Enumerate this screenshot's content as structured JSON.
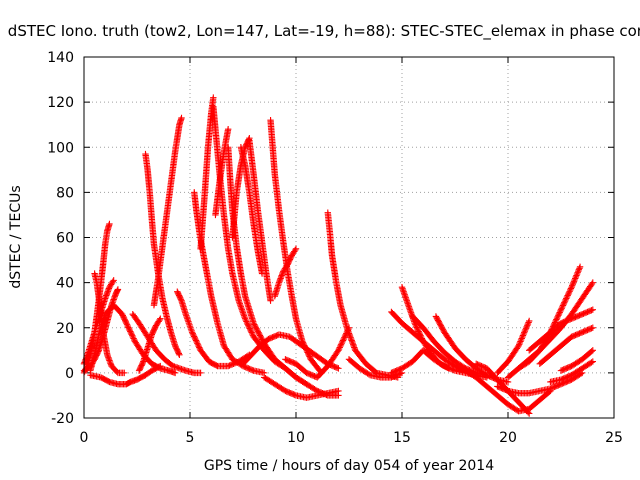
{
  "chart_data": {
    "type": "scatter",
    "title": "dSTEC Iono. truth (tow2, Lon=147, Lat=-19, h=88): STEC-STEC_elemax in phase cont",
    "xlabel": "GPS time / hours of day 054 of year 2014",
    "ylabel": "dSTEC  / TECUs",
    "xlim": [
      0,
      25
    ],
    "ylim": [
      -20,
      140
    ],
    "xticks": [
      "0",
      "5",
      "10",
      "15",
      "20",
      "25"
    ],
    "yticks": [
      "-20",
      "0",
      "20",
      "40",
      "60",
      "80",
      "100",
      "120",
      "140"
    ],
    "grid": true,
    "marker": "+",
    "color": "#ff0000",
    "series": [
      {
        "x": [
          0.0,
          0.15,
          0.3,
          0.45,
          0.6,
          0.75,
          0.9,
          1.0,
          1.1,
          1.2
        ],
        "y": [
          0,
          3,
          8,
          15,
          25,
          36,
          48,
          57,
          63,
          66
        ]
      },
      {
        "x": [
          0.0,
          0.3,
          0.5,
          0.7,
          0.9,
          1.1,
          1.3,
          1.5,
          1.6
        ],
        "y": [
          1,
          3,
          6,
          10,
          16,
          23,
          30,
          35,
          37
        ]
      },
      {
        "x": [
          0.5,
          0.6,
          0.75,
          0.9,
          1.1,
          1.3,
          1.6,
          1.9
        ],
        "y": [
          44,
          40,
          30,
          18,
          8,
          3,
          0,
          0
        ]
      },
      {
        "x": [
          0.0,
          0.2,
          0.4,
          0.6,
          0.8,
          1.0,
          1.2,
          1.4
        ],
        "y": [
          4,
          9,
          15,
          21,
          27,
          33,
          38,
          41
        ]
      },
      {
        "x": [
          0.3,
          0.5,
          0.7,
          1.0,
          1.4,
          1.8,
          2.0,
          2.4,
          2.8,
          3.2,
          3.6,
          4.0,
          4.3
        ],
        "y": [
          1,
          8,
          17,
          26,
          30,
          26,
          22,
          14,
          8,
          4,
          2,
          1,
          0
        ]
      },
      {
        "x": [
          0.3,
          0.8,
          1.2,
          1.6,
          2.0,
          2.2,
          2.5,
          2.9,
          3.2,
          3.6
        ],
        "y": [
          -1,
          -2,
          -4,
          -5,
          -5,
          -4,
          -3,
          -1,
          1,
          3
        ]
      },
      {
        "x": [
          2.3,
          2.6,
          3.0,
          3.4,
          3.8,
          4.2,
          4.8,
          5.2,
          5.5
        ],
        "y": [
          26,
          22,
          16,
          10,
          6,
          3,
          1,
          0,
          0
        ]
      },
      {
        "x": [
          2.9,
          3.0,
          3.1,
          3.2,
          3.3,
          3.5,
          3.7,
          3.9,
          4.1,
          4.3,
          4.5
        ],
        "y": [
          97,
          90,
          80,
          68,
          57,
          44,
          33,
          25,
          18,
          12,
          8
        ]
      },
      {
        "x": [
          2.6,
          2.8,
          3.0,
          3.2,
          3.4,
          3.6
        ],
        "y": [
          1,
          5,
          11,
          17,
          21,
          24
        ]
      },
      {
        "x": [
          3.3,
          3.5,
          3.7,
          3.9,
          4.1,
          4.3,
          4.5,
          4.6
        ],
        "y": [
          30,
          42,
          56,
          70,
          84,
          98,
          110,
          113
        ]
      },
      {
        "x": [
          4.4,
          4.6,
          4.8,
          5.1,
          5.5,
          5.9,
          6.3,
          6.8,
          7.3,
          7.8
        ],
        "y": [
          36,
          32,
          26,
          18,
          10,
          5,
          3,
          3,
          5,
          8
        ]
      },
      {
        "x": [
          5.2,
          5.3,
          5.45,
          5.6,
          5.8,
          6.0,
          6.3,
          6.6,
          7.0,
          7.5,
          8.0,
          8.5
        ],
        "y": [
          80,
          72,
          62,
          54,
          44,
          34,
          22,
          12,
          6,
          3,
          1,
          0
        ]
      },
      {
        "x": [
          5.5,
          5.7,
          5.85,
          6.0,
          6.1
        ],
        "y": [
          55,
          80,
          100,
          115,
          122
        ]
      },
      {
        "x": [
          6.1,
          6.2,
          6.4,
          6.6,
          6.8,
          7.0,
          7.3,
          7.6,
          8.0,
          8.5,
          9.0,
          9.5,
          10.0,
          10.5
        ],
        "y": [
          118,
          108,
          88,
          70,
          55,
          44,
          32,
          24,
          16,
          10,
          5,
          2,
          -2,
          -5
        ]
      },
      {
        "x": [
          6.2,
          6.4,
          6.6,
          6.8
        ],
        "y": [
          70,
          85,
          98,
          108
        ]
      },
      {
        "x": [
          6.8,
          6.9,
          7.0,
          7.2,
          7.4,
          7.6,
          8.0,
          8.5,
          9.0,
          9.5,
          10.0,
          10.5,
          11.0,
          11.5,
          12.0
        ],
        "y": [
          100,
          85,
          72,
          56,
          44,
          34,
          22,
          13,
          6,
          2,
          -2,
          -5,
          -8,
          -10,
          -10
        ]
      },
      {
        "x": [
          7.0,
          7.2,
          7.4,
          7.6,
          7.8
        ],
        "y": [
          60,
          80,
          92,
          100,
          104
        ]
      },
      {
        "x": [
          7.8,
          8.0,
          8.2,
          8.4,
          8.6,
          8.8
        ],
        "y": [
          103,
          88,
          72,
          58,
          44,
          32
        ]
      },
      {
        "x": [
          7.4,
          7.6,
          7.8,
          8.0,
          8.2,
          8.4
        ],
        "y": [
          100,
          92,
          80,
          66,
          54,
          44
        ]
      },
      {
        "x": [
          7.5,
          7.9,
          8.3,
          8.7,
          9.2,
          9.7,
          10.3,
          10.9,
          11.5,
          12.0
        ],
        "y": [
          4,
          8,
          12,
          15,
          17,
          16,
          12,
          8,
          4,
          2
        ]
      },
      {
        "x": [
          8.8,
          8.9,
          9.0,
          9.2,
          9.4,
          9.6,
          9.8,
          10.0,
          10.3,
          10.7,
          11.2
        ],
        "y": [
          112,
          100,
          88,
          72,
          58,
          45,
          34,
          24,
          14,
          6,
          0
        ]
      },
      {
        "x": [
          9.0,
          9.2,
          9.4,
          9.6,
          9.8,
          10.0
        ],
        "y": [
          34,
          40,
          45,
          48,
          52,
          55
        ]
      },
      {
        "x": [
          8.5,
          9.0,
          9.5,
          10.0,
          10.5,
          11.0,
          11.5,
          12.0
        ],
        "y": [
          -2,
          -5,
          -8,
          -10,
          -11,
          -10,
          -9,
          -8
        ]
      },
      {
        "x": [
          11.5,
          11.6,
          11.7,
          11.9,
          12.1,
          12.4,
          12.8,
          13.3,
          13.8,
          14.3,
          14.8
        ],
        "y": [
          71,
          62,
          52,
          40,
          30,
          20,
          10,
          4,
          0,
          -1,
          -2
        ]
      },
      {
        "x": [
          9.5,
          10.0,
          10.5,
          11.0,
          11.5,
          12.0,
          12.5
        ],
        "y": [
          6,
          4,
          0,
          -2,
          3,
          10,
          20
        ]
      },
      {
        "x": [
          12.5,
          13.0,
          13.5,
          14.0,
          14.5,
          15.0
        ],
        "y": [
          6,
          2,
          -1,
          -2,
          -2,
          0
        ]
      },
      {
        "x": [
          14.5,
          15.0,
          15.5,
          16.0,
          16.5,
          17.0,
          17.5,
          18.0,
          18.5
        ],
        "y": [
          0,
          2,
          5,
          10,
          6,
          3,
          1,
          0,
          -1
        ]
      },
      {
        "x": [
          15.0,
          15.3,
          15.6,
          16.0,
          16.4,
          16.8,
          17.2
        ],
        "y": [
          38,
          30,
          22,
          14,
          8,
          4,
          2
        ]
      },
      {
        "x": [
          14.5,
          15.0,
          15.5,
          16.0,
          16.5,
          17.0,
          17.5,
          18.0,
          18.5,
          19.0
        ],
        "y": [
          27,
          22,
          18,
          14,
          10,
          6,
          3,
          1,
          -1,
          -2
        ]
      },
      {
        "x": [
          15.5,
          16.0,
          16.5,
          17.0,
          17.5,
          18.0,
          18.5,
          19.0
        ],
        "y": [
          25,
          20,
          14,
          9,
          5,
          2,
          0,
          -1
        ]
      },
      {
        "x": [
          16.6,
          17.0,
          17.5,
          18.0,
          18.5,
          19.0,
          19.5,
          20.0
        ],
        "y": [
          25,
          18,
          11,
          6,
          2,
          -1,
          -3,
          -4
        ]
      },
      {
        "x": [
          17.5,
          18.0,
          18.5,
          19.0,
          19.5,
          20.0,
          20.5,
          21.0,
          21.5,
          22.0
        ],
        "y": [
          3,
          1,
          -2,
          -6,
          -10,
          -14,
          -17,
          -16,
          -12,
          -8
        ]
      },
      {
        "x": [
          18.5,
          19.0,
          19.5,
          20.0,
          20.5,
          21.0
        ],
        "y": [
          4,
          2,
          -3,
          -8,
          -13,
          -18
        ]
      },
      {
        "x": [
          19.5,
          20.0,
          20.5,
          21.0,
          21.5,
          22.0,
          22.5,
          23.0,
          23.5
        ],
        "y": [
          -6,
          -8,
          -9,
          -9,
          -8,
          -7,
          -5,
          -3,
          0
        ]
      },
      {
        "x": [
          19.5,
          20.0,
          20.5,
          21.0
        ],
        "y": [
          0,
          5,
          12,
          23
        ]
      },
      {
        "x": [
          20.5,
          21.0,
          21.5,
          22.0,
          22.5,
          23.0,
          23.4
        ],
        "y": [
          2,
          5,
          10,
          18,
          28,
          38,
          47
        ]
      },
      {
        "x": [
          20.0,
          20.5,
          21.0,
          21.5,
          22.0,
          22.5,
          23.0,
          23.5,
          24.0
        ],
        "y": [
          -2,
          2,
          6,
          10,
          15,
          20,
          26,
          33,
          40
        ]
      },
      {
        "x": [
          21.0,
          21.5,
          22.0,
          22.5,
          23.0,
          23.5,
          24.0
        ],
        "y": [
          10,
          14,
          18,
          22,
          24,
          26,
          28
        ]
      },
      {
        "x": [
          21.5,
          22.0,
          22.5,
          23.0,
          23.5,
          24.0
        ],
        "y": [
          4,
          8,
          12,
          16,
          18,
          20
        ]
      },
      {
        "x": [
          22.5,
          23.0,
          23.5,
          24.0
        ],
        "y": [
          1,
          3,
          6,
          10
        ]
      },
      {
        "x": [
          22.0,
          22.5,
          23.0,
          23.5,
          24.0
        ],
        "y": [
          -4,
          -3,
          -1,
          2,
          5
        ]
      }
    ]
  }
}
